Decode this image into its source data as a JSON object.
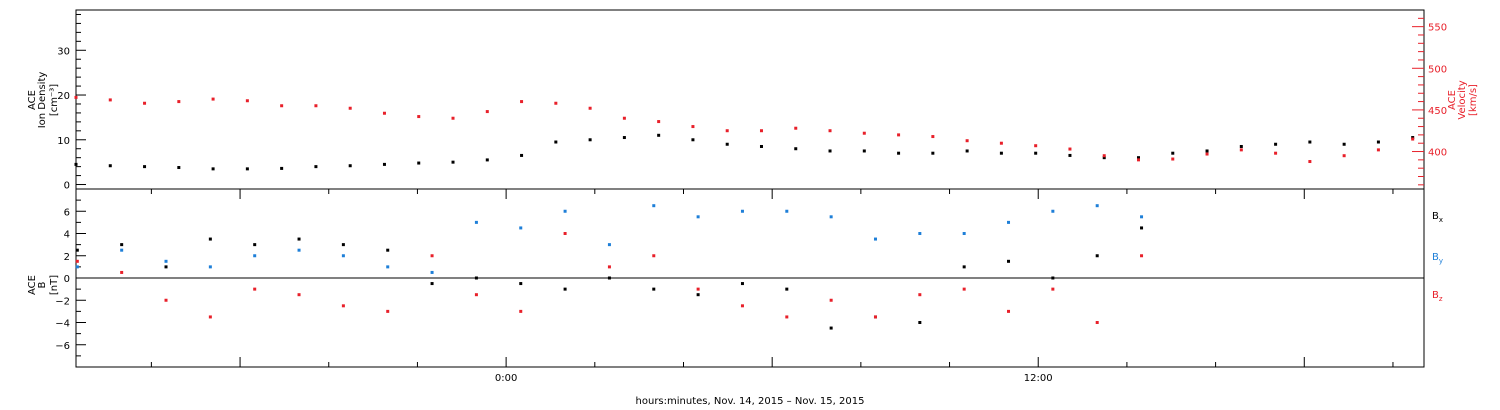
{
  "chart_data": [
    {
      "type": "scatter",
      "title": "",
      "xlabel": "",
      "ylabel_lines": [
        "ACE",
        "Ion Density",
        "[cm⁻³]"
      ],
      "y2label_lines": [
        "ACE",
        "Velocity",
        "[km/s]"
      ],
      "ylim": [
        -1,
        39
      ],
      "y2lim": [
        355,
        570
      ],
      "yticks": [
        "0",
        "10",
        "20",
        "30"
      ],
      "yticks_values": [
        0,
        10,
        20,
        30
      ],
      "y2ticks": [
        "400",
        "450",
        "500",
        "550"
      ],
      "y2ticks_values": [
        400,
        450,
        500,
        550
      ],
      "xlim_hours": [
        -24,
        15.33
      ],
      "colors": {
        "density": "#000000",
        "velocity": "#e8202a"
      },
      "series": [
        {
          "name": "",
          "axis": "left",
          "color": "#000000",
          "x_hours": [
            -24,
            -23,
            -22,
            -21,
            -20,
            -19,
            -18,
            -17,
            -16,
            -15,
            -14,
            -13,
            -12,
            -11,
            -10,
            -9,
            -8,
            -7,
            -6,
            -5,
            -4,
            -3,
            -2,
            -1,
            0,
            1,
            2,
            3,
            4,
            5,
            6,
            7,
            8,
            9,
            10,
            11,
            12,
            13,
            14,
            15
          ],
          "y": [
            4.5,
            4.2,
            4.0,
            3.8,
            3.5,
            3.5,
            3.6,
            4.0,
            4.2,
            4.5,
            4.8,
            5.0,
            5.5,
            6.5,
            9.5,
            10.0,
            10.5,
            11.0,
            10.0,
            9.0,
            8.5,
            8.0,
            7.5,
            7.5,
            7.0,
            7.0,
            7.5,
            7.0,
            7.0,
            6.5,
            6.0,
            6.0,
            7.0,
            7.5,
            8.5,
            9.0,
            9.5,
            9.0,
            9.5,
            10.5
          ]
        },
        {
          "name": "",
          "axis": "right",
          "color": "#e8202a",
          "x_hours": [
            -24,
            -23,
            -22,
            -21,
            -20,
            -19,
            -18,
            -17,
            -16,
            -15,
            -14,
            -13,
            -12,
            -11,
            -10,
            -9,
            -8,
            -7,
            -6,
            -5,
            -4,
            -3,
            -2,
            -1,
            0,
            1,
            2,
            3,
            4,
            5,
            6,
            7,
            8,
            9,
            10,
            11,
            12,
            13,
            14,
            15
          ],
          "y": [
            465,
            462,
            458,
            460,
            463,
            461,
            455,
            455,
            452,
            446,
            442,
            440,
            448,
            460,
            458,
            452,
            440,
            436,
            430,
            425,
            425,
            428,
            425,
            422,
            420,
            418,
            413,
            410,
            407,
            403,
            395,
            390,
            391,
            397,
            402,
            398,
            388,
            395,
            402,
            415
          ]
        }
      ]
    },
    {
      "type": "scatter",
      "title": "",
      "xlabel": "hours:minutes, Nov. 14, 2015 – Nov. 15, 2015",
      "ylabel_lines": [
        "ACE",
        "B",
        "[nT]"
      ],
      "ylim": [
        -8,
        8
      ],
      "yticks": [
        "−6",
        "−4",
        "−2",
        "0",
        "2",
        "4",
        "6"
      ],
      "yticks_values": [
        -6,
        -4,
        -2,
        0,
        2,
        4,
        6
      ],
      "xticks": [
        "0:00",
        "12:00"
      ],
      "xticks_hours": [
        0,
        12
      ],
      "xlim_hours": [
        -9.7,
        20.7
      ],
      "legend_position": "right",
      "series": [
        {
          "name": "Bx",
          "color": "#000000",
          "x_hours": [
            -9.67,
            -8.67,
            -7.67,
            -6.67,
            -5.67,
            -4.67,
            -3.67,
            -2.67,
            -1.67,
            -0.67,
            0.33,
            1.33,
            2.33,
            3.33,
            4.33,
            5.33,
            6.33,
            7.33,
            8.33,
            9.33,
            10.33,
            11.33,
            12.33,
            13.33,
            14.33
          ],
          "y": [
            2.5,
            3.0,
            1.0,
            3.5,
            3.0,
            3.5,
            3.0,
            2.5,
            -0.5,
            0.0,
            -0.5,
            -1.0,
            0.0,
            -1.0,
            -1.5,
            -0.5,
            -1.0,
            -4.5,
            -3.5,
            -4.0,
            1.0,
            1.5,
            0.0,
            2.0,
            4.5
          ]
        },
        {
          "name": "By",
          "color": "#1e7fd8",
          "x_hours": [
            -9.67,
            -8.67,
            -7.67,
            -6.67,
            -5.67,
            -4.67,
            -3.67,
            -2.67,
            -1.67,
            -0.67,
            0.33,
            1.33,
            2.33,
            3.33,
            4.33,
            5.33,
            6.33,
            7.33,
            8.33,
            9.33,
            10.33,
            11.33,
            12.33,
            13.33,
            14.33
          ],
          "y": [
            1.0,
            2.5,
            1.5,
            1.0,
            2.0,
            2.5,
            2.0,
            1.0,
            0.5,
            5.0,
            4.5,
            6.0,
            3.0,
            6.5,
            5.5,
            6.0,
            6.0,
            5.5,
            3.5,
            4.0,
            4.0,
            5.0,
            6.0,
            6.5,
            5.5
          ]
        },
        {
          "name": "Bz",
          "color": "#e8202a",
          "x_hours": [
            -9.67,
            -8.67,
            -7.67,
            -6.67,
            -5.67,
            -4.67,
            -3.67,
            -2.67,
            -1.67,
            -0.67,
            0.33,
            1.33,
            2.33,
            3.33,
            4.33,
            5.33,
            6.33,
            7.33,
            8.33,
            9.33,
            10.33,
            11.33,
            12.33,
            13.33,
            14.33
          ],
          "y": [
            1.5,
            0.5,
            -2.0,
            -3.5,
            -1.0,
            -1.5,
            -2.5,
            -3.0,
            2.0,
            -1.5,
            -3.0,
            4.0,
            1.0,
            2.0,
            -1.0,
            -2.5,
            -3.5,
            -2.0,
            -3.5,
            -1.5,
            -1.0,
            -3.0,
            -1.0,
            -4.0,
            2.0
          ]
        }
      ],
      "legend": [
        {
          "label": "B",
          "sub": "x",
          "color": "#000000"
        },
        {
          "label": "B",
          "sub": "y",
          "color": "#1e7fd8"
        },
        {
          "label": "B",
          "sub": "z",
          "color": "#e8202a"
        }
      ]
    }
  ]
}
